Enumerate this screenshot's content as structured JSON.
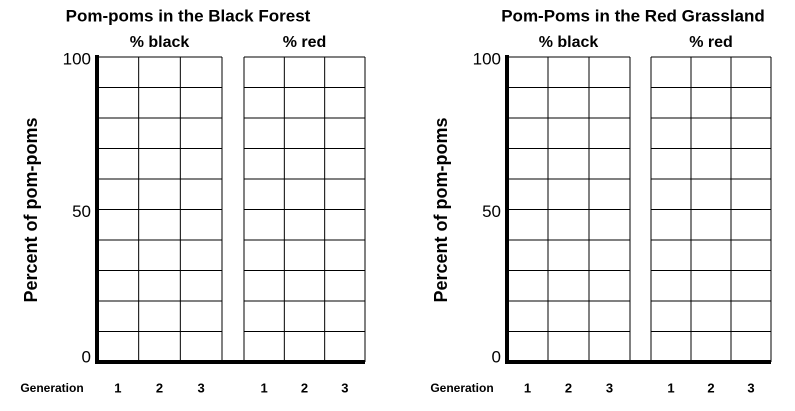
{
  "chart_data": [
    {
      "type": "grid",
      "title": "Pom-poms in the Black Forest",
      "ylabel": "Percent of pom-poms",
      "xlabel": "Generation",
      "groups": [
        "% black",
        "% red"
      ],
      "categories": [
        "1",
        "2",
        "3"
      ],
      "ylim": [
        0,
        100
      ],
      "yticks": [
        0,
        50,
        100
      ],
      "grid_yticks": [
        0,
        10,
        20,
        30,
        40,
        50,
        60,
        70,
        80,
        90,
        100
      ]
    },
    {
      "type": "grid",
      "title": "Pom-Poms in the Red Grassland",
      "ylabel": "Percent of pom-poms",
      "xlabel": "Generation",
      "groups": [
        "% black",
        "% red"
      ],
      "categories": [
        "1",
        "2",
        "3"
      ],
      "ylim": [
        0,
        100
      ],
      "yticks": [
        0,
        50,
        100
      ],
      "grid_yticks": [
        0,
        10,
        20,
        30,
        40,
        50,
        60,
        70,
        80,
        90,
        100
      ]
    }
  ]
}
